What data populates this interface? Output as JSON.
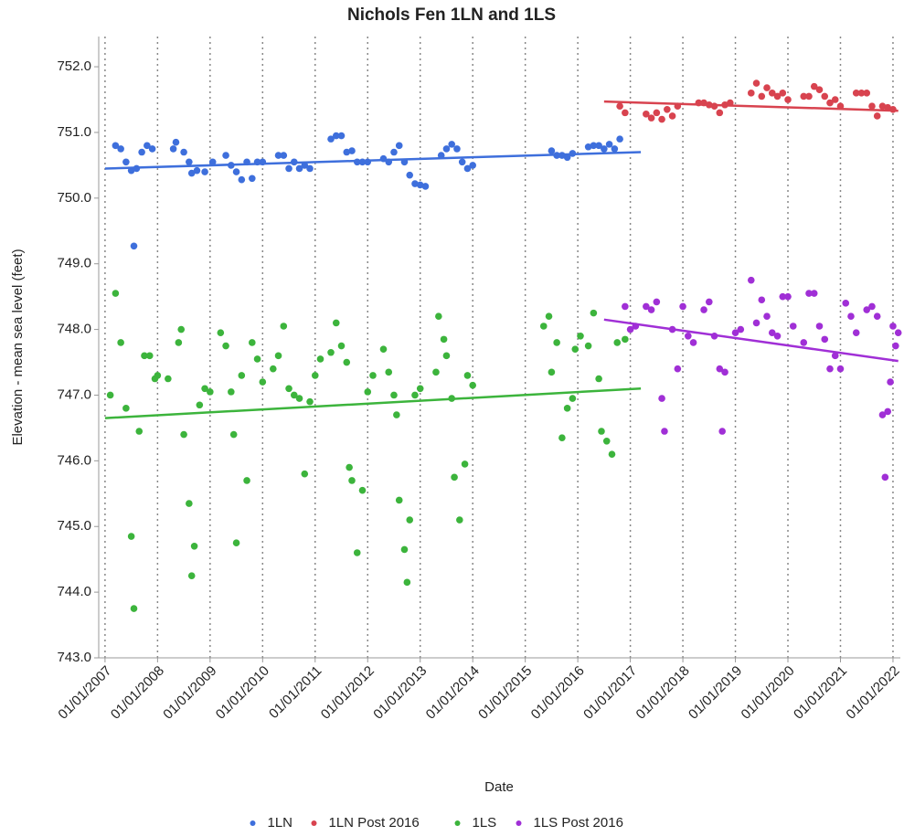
{
  "chart_data": {
    "type": "scatter",
    "title": "Nichols Fen 1LN and 1LS",
    "x_label": "Date",
    "y_label": "Elevation - mean sea level (feet)",
    "xlim": [
      2006.88,
      2022.14
    ],
    "ylim": [
      743.0,
      752.46
    ],
    "xticks": [
      {
        "value": 2007,
        "label": "01/01/2007"
      },
      {
        "value": 2008,
        "label": "01/01/2008"
      },
      {
        "value": 2009,
        "label": "01/01/2009"
      },
      {
        "value": 2010,
        "label": "01/01/2010"
      },
      {
        "value": 2011,
        "label": "01/01/2011"
      },
      {
        "value": 2012,
        "label": "01/01/2012"
      },
      {
        "value": 2013,
        "label": "01/01/2013"
      },
      {
        "value": 2014,
        "label": "01/01/2014"
      },
      {
        "value": 2015,
        "label": "01/01/2015"
      },
      {
        "value": 2016,
        "label": "01/01/2016"
      },
      {
        "value": 2017,
        "label": "01/01/2017"
      },
      {
        "value": 2018,
        "label": "01/01/2018"
      },
      {
        "value": 2019,
        "label": "01/01/2019"
      },
      {
        "value": 2020,
        "label": "01/01/2020"
      },
      {
        "value": 2021,
        "label": "01/01/2021"
      },
      {
        "value": 2022,
        "label": "01/01/2022"
      }
    ],
    "yticks": [
      {
        "value": 743,
        "label": "743.0"
      },
      {
        "value": 744,
        "label": "744.0"
      },
      {
        "value": 745,
        "label": "745.0"
      },
      {
        "value": 746,
        "label": "746.0"
      },
      {
        "value": 747,
        "label": "747.0"
      },
      {
        "value": 748,
        "label": "748.0"
      },
      {
        "value": 749,
        "label": "749.0"
      },
      {
        "value": 750,
        "label": "750.0"
      },
      {
        "value": 751,
        "label": "751.0"
      },
      {
        "value": 752,
        "label": "752.0"
      }
    ],
    "x_grid": true,
    "legend_position": "bottom",
    "series": [
      {
        "name": "1LN",
        "color": "#3e6fdc",
        "x": [
          2007.2,
          2007.3,
          2007.4,
          2007.5,
          2007.55,
          2007.6,
          2007.7,
          2007.8,
          2007.9,
          2008.3,
          2008.35,
          2008.5,
          2008.6,
          2008.65,
          2008.75,
          2008.9,
          2009.05,
          2009.3,
          2009.4,
          2009.5,
          2009.6,
          2009.7,
          2009.8,
          2009.9,
          2010.0,
          2010.3,
          2010.4,
          2010.5,
          2010.6,
          2010.7,
          2010.8,
          2010.9,
          2011.3,
          2011.4,
          2011.5,
          2011.6,
          2011.7,
          2011.8,
          2011.9,
          2012.0,
          2012.3,
          2012.4,
          2012.5,
          2012.6,
          2012.7,
          2012.8,
          2012.9,
          2013.0,
          2013.1,
          2013.4,
          2013.5,
          2013.6,
          2013.7,
          2013.8,
          2013.9,
          2014.0,
          2015.5,
          2015.6,
          2015.7,
          2015.8,
          2015.9,
          2016.2,
          2016.3,
          2016.4,
          2016.5,
          2016.6,
          2016.7,
          2016.8
        ],
        "y": [
          750.8,
          750.75,
          750.55,
          750.42,
          749.27,
          750.45,
          750.7,
          750.8,
          750.75,
          750.75,
          750.85,
          750.7,
          750.55,
          750.38,
          750.42,
          750.4,
          750.55,
          750.65,
          750.5,
          750.4,
          750.28,
          750.55,
          750.3,
          750.55,
          750.55,
          750.65,
          750.65,
          750.45,
          750.55,
          750.45,
          750.5,
          750.45,
          750.9,
          750.95,
          750.95,
          750.7,
          750.72,
          750.55,
          750.55,
          750.55,
          750.6,
          750.55,
          750.7,
          750.8,
          750.55,
          750.35,
          750.22,
          750.2,
          750.18,
          750.65,
          750.75,
          750.82,
          750.75,
          750.55,
          750.45,
          750.5,
          750.72,
          750.65,
          750.65,
          750.62,
          750.68,
          750.78,
          750.8,
          750.8,
          750.75,
          750.82,
          750.75,
          750.9
        ],
        "trend": {
          "x": [
            2007.0,
            2017.2
          ],
          "y": [
            750.45,
            750.7
          ]
        }
      },
      {
        "name": "1LN Post 2016",
        "color": "#d8434f",
        "x": [
          2016.8,
          2016.9,
          2017.3,
          2017.4,
          2017.5,
          2017.6,
          2017.7,
          2017.8,
          2017.9,
          2018.3,
          2018.4,
          2018.5,
          2018.6,
          2018.7,
          2018.8,
          2018.9,
          2019.3,
          2019.4,
          2019.5,
          2019.6,
          2019.7,
          2019.8,
          2019.9,
          2020.0,
          2020.3,
          2020.4,
          2020.5,
          2020.6,
          2020.7,
          2020.8,
          2020.9,
          2021.0,
          2021.3,
          2021.4,
          2021.5,
          2021.6,
          2021.7,
          2021.8,
          2021.9,
          2022.0
        ],
        "y": [
          751.4,
          751.3,
          751.28,
          751.22,
          751.3,
          751.2,
          751.35,
          751.25,
          751.4,
          751.45,
          751.45,
          751.42,
          751.4,
          751.3,
          751.42,
          751.45,
          751.6,
          751.75,
          751.55,
          751.68,
          751.6,
          751.55,
          751.6,
          751.5,
          751.55,
          751.55,
          751.7,
          751.65,
          751.55,
          751.45,
          751.5,
          751.4,
          751.6,
          751.6,
          751.6,
          751.4,
          751.25,
          751.4,
          751.38,
          751.35
        ],
        "trend": {
          "x": [
            2016.5,
            2022.1
          ],
          "y": [
            751.47,
            751.33
          ]
        }
      },
      {
        "name": "1LS",
        "color": "#3cb43c",
        "x": [
          2007.1,
          2007.2,
          2007.3,
          2007.4,
          2007.5,
          2007.55,
          2007.65,
          2007.75,
          2007.85,
          2007.95,
          2008.0,
          2008.2,
          2008.4,
          2008.45,
          2008.5,
          2008.6,
          2008.65,
          2008.7,
          2008.8,
          2008.9,
          2009.0,
          2009.2,
          2009.3,
          2009.4,
          2009.45,
          2009.5,
          2009.6,
          2009.7,
          2009.8,
          2009.9,
          2010.0,
          2010.2,
          2010.3,
          2010.4,
          2010.5,
          2010.6,
          2010.7,
          2010.8,
          2010.9,
          2011.0,
          2011.1,
          2011.3,
          2011.4,
          2011.5,
          2011.6,
          2011.65,
          2011.7,
          2011.8,
          2011.9,
          2012.0,
          2012.1,
          2012.3,
          2012.4,
          2012.5,
          2012.55,
          2012.6,
          2012.7,
          2012.75,
          2012.8,
          2012.9,
          2013.0,
          2013.3,
          2013.35,
          2013.45,
          2013.5,
          2013.6,
          2013.65,
          2013.75,
          2013.85,
          2013.9,
          2014.0,
          2015.35,
          2015.45,
          2015.5,
          2015.6,
          2015.7,
          2015.8,
          2015.9,
          2015.95,
          2016.05,
          2016.2,
          2016.3,
          2016.4,
          2016.45,
          2016.55,
          2016.65,
          2016.75,
          2016.9
        ],
        "y": [
          747.0,
          748.55,
          747.8,
          746.8,
          744.85,
          743.75,
          746.45,
          747.6,
          747.6,
          747.25,
          747.3,
          747.25,
          747.8,
          748.0,
          746.4,
          745.35,
          744.25,
          744.7,
          746.85,
          747.1,
          747.05,
          747.95,
          747.75,
          747.05,
          746.4,
          744.75,
          747.3,
          745.7,
          747.8,
          747.55,
          747.2,
          747.4,
          747.6,
          748.05,
          747.1,
          747.0,
          746.95,
          745.8,
          746.9,
          747.3,
          747.55,
          747.65,
          748.1,
          747.75,
          747.5,
          745.9,
          745.7,
          744.6,
          745.55,
          747.05,
          747.3,
          747.7,
          747.35,
          747.0,
          746.7,
          745.4,
          744.65,
          744.15,
          745.1,
          747.0,
          747.1,
          747.35,
          748.2,
          747.85,
          747.6,
          746.95,
          745.75,
          745.1,
          745.95,
          747.3,
          747.15,
          748.05,
          748.2,
          747.35,
          747.8,
          746.35,
          746.8,
          746.95,
          747.7,
          747.9,
          747.75,
          748.25,
          747.25,
          746.45,
          746.3,
          746.1,
          747.8,
          747.85
        ],
        "trend": {
          "x": [
            2007.0,
            2017.2
          ],
          "y": [
            746.65,
            747.1
          ]
        }
      },
      {
        "name": "1LS Post 2016",
        "color": "#a02fd6",
        "x": [
          2016.9,
          2017.0,
          2017.1,
          2017.3,
          2017.4,
          2017.5,
          2017.6,
          2017.65,
          2017.8,
          2017.9,
          2018.0,
          2018.1,
          2018.2,
          2018.4,
          2018.5,
          2018.6,
          2018.7,
          2018.75,
          2018.8,
          2019.0,
          2019.1,
          2019.3,
          2019.4,
          2019.5,
          2019.6,
          2019.7,
          2019.8,
          2019.9,
          2020.0,
          2020.1,
          2020.3,
          2020.4,
          2020.5,
          2020.6,
          2020.7,
          2020.8,
          2020.9,
          2021.0,
          2021.1,
          2021.2,
          2021.3,
          2021.5,
          2021.6,
          2021.7,
          2021.8,
          2021.85,
          2021.9,
          2021.95,
          2022.0,
          2022.05,
          2022.1
        ],
        "y": [
          748.35,
          748.0,
          748.05,
          748.35,
          748.3,
          748.42,
          746.95,
          746.45,
          748.0,
          747.4,
          748.35,
          747.9,
          747.8,
          748.3,
          748.42,
          747.9,
          747.4,
          746.45,
          747.35,
          747.95,
          748.0,
          748.75,
          748.1,
          748.45,
          748.2,
          747.95,
          747.9,
          748.5,
          748.5,
          748.05,
          747.8,
          748.55,
          748.55,
          748.05,
          747.85,
          747.4,
          747.6,
          747.4,
          748.4,
          748.2,
          747.95,
          748.3,
          748.35,
          748.2,
          746.7,
          745.75,
          746.75,
          747.2,
          748.05,
          747.75,
          747.95
        ],
        "trend": {
          "x": [
            2016.5,
            2022.1
          ],
          "y": [
            748.15,
            747.52
          ]
        }
      }
    ]
  }
}
